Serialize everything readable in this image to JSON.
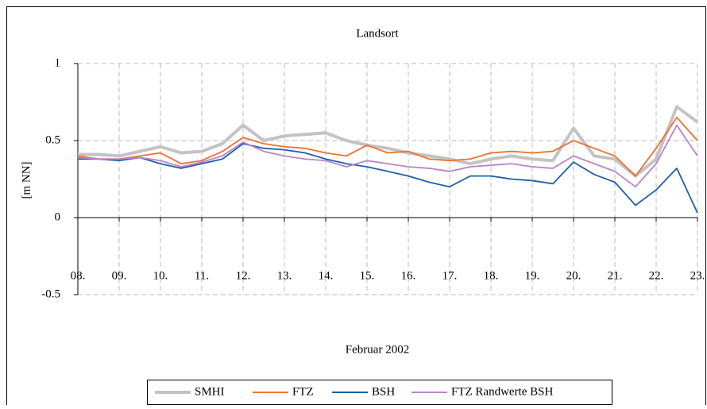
{
  "chart_data": {
    "type": "line",
    "title": "Landsort",
    "x_label": "Februar 2002",
    "y_label": "[m NN]",
    "x": [
      8,
      8.5,
      9,
      9.5,
      10,
      10.5,
      11,
      11.5,
      12,
      12.5,
      13,
      13.5,
      14,
      14.5,
      15,
      15.5,
      16,
      16.5,
      17,
      17.5,
      18,
      18.5,
      19,
      19.5,
      20,
      20.5,
      21,
      21.5,
      22,
      22.5,
      23
    ],
    "series": [
      {
        "name": "SMHI",
        "color": "#c3c3c3",
        "values": [
          0.41,
          0.41,
          0.4,
          0.43,
          0.46,
          0.42,
          0.43,
          0.48,
          0.6,
          0.5,
          0.53,
          0.54,
          0.55,
          0.5,
          0.47,
          0.45,
          0.42,
          0.4,
          0.38,
          0.35,
          0.38,
          0.4,
          0.38,
          0.37,
          0.58,
          0.4,
          0.38,
          0.27,
          0.38,
          0.72,
          0.62
        ]
      },
      {
        "name": "FTZ",
        "color": "#f07030",
        "values": [
          0.4,
          0.38,
          0.38,
          0.4,
          0.42,
          0.35,
          0.37,
          0.43,
          0.52,
          0.48,
          0.46,
          0.45,
          0.42,
          0.4,
          0.47,
          0.42,
          0.43,
          0.38,
          0.37,
          0.38,
          0.42,
          0.43,
          0.42,
          0.43,
          0.5,
          0.45,
          0.4,
          0.27,
          0.45,
          0.65,
          0.5
        ]
      },
      {
        "name": "BSH",
        "color": "#1f5fa8",
        "values": [
          0.38,
          0.38,
          0.37,
          0.39,
          0.35,
          0.32,
          0.35,
          0.38,
          0.48,
          0.45,
          0.44,
          0.42,
          0.38,
          0.35,
          0.33,
          0.3,
          0.27,
          0.23,
          0.2,
          0.27,
          0.27,
          0.25,
          0.24,
          0.22,
          0.36,
          0.28,
          0.23,
          0.08,
          0.18,
          0.32,
          0.03
        ]
      },
      {
        "name": "FTZ Randwerte BSH",
        "color": "#b884c8",
        "values": [
          0.39,
          0.38,
          0.38,
          0.39,
          0.37,
          0.33,
          0.36,
          0.4,
          0.49,
          0.43,
          0.4,
          0.38,
          0.37,
          0.33,
          0.37,
          0.35,
          0.33,
          0.32,
          0.3,
          0.33,
          0.34,
          0.35,
          0.33,
          0.32,
          0.4,
          0.35,
          0.3,
          0.2,
          0.35,
          0.6,
          0.4
        ]
      }
    ],
    "xlim": [
      8,
      23
    ],
    "xticks": [
      {
        "value": 8,
        "label": "08."
      },
      {
        "value": 9,
        "label": "09."
      },
      {
        "value": 10,
        "label": "10."
      },
      {
        "value": 11,
        "label": "11."
      },
      {
        "value": 12,
        "label": "12."
      },
      {
        "value": 13,
        "label": "13."
      },
      {
        "value": 14,
        "label": "14."
      },
      {
        "value": 15,
        "label": "15."
      },
      {
        "value": 16,
        "label": "16."
      },
      {
        "value": 17,
        "label": "17."
      },
      {
        "value": 18,
        "label": "18."
      },
      {
        "value": 19,
        "label": "19."
      },
      {
        "value": 20,
        "label": "20."
      },
      {
        "value": 21,
        "label": "21."
      },
      {
        "value": 22,
        "label": "22."
      },
      {
        "value": 23,
        "label": "23."
      }
    ],
    "ylim": [
      -0.5,
      1
    ],
    "yticks": [
      -0.5,
      0,
      0.5,
      1
    ],
    "grid": true,
    "legend": "bottom"
  }
}
